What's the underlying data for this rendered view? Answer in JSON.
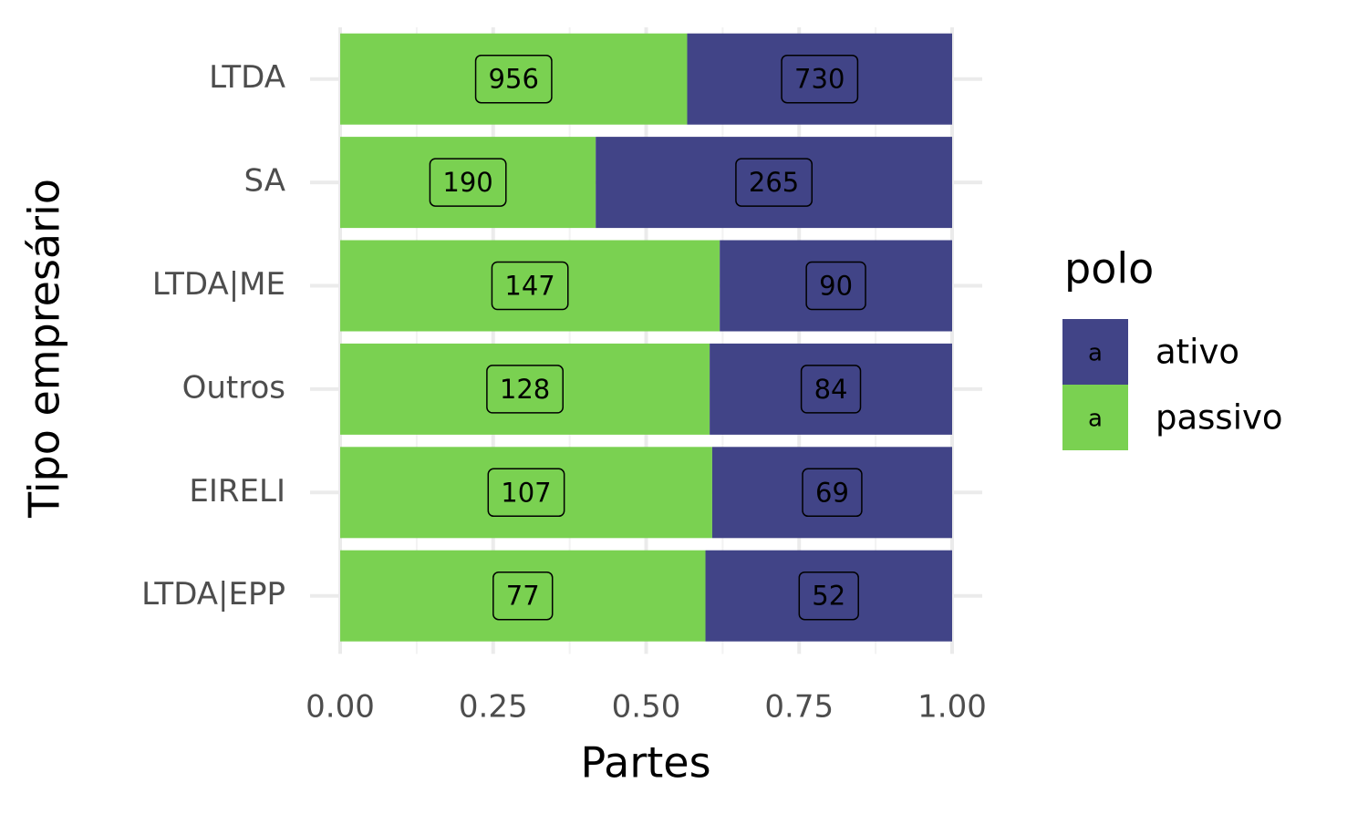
{
  "chart_data": {
    "type": "bar",
    "orientation": "horizontal",
    "position": "fill",
    "x_label": "Partes",
    "y_label": "Tipo empresário",
    "legend_title": "polo",
    "legend_position": "right",
    "categories": [
      "LTDA",
      "SA",
      "LTDA|ME",
      "Outros",
      "EIRELI",
      "LTDA|EPP"
    ],
    "series": [
      {
        "name": "ativo",
        "color": "#414487",
        "values": [
          730,
          265,
          90,
          84,
          69,
          52
        ]
      },
      {
        "name": "passivo",
        "color": "#7AD151",
        "values": [
          956,
          190,
          147,
          128,
          107,
          77
        ]
      }
    ],
    "xlim": [
      0,
      1
    ],
    "xticks": [
      {
        "value": 0,
        "label": "0.00"
      },
      0.25,
      {
        "value": 0.5,
        "label": "0.50"
      },
      0.75,
      {
        "value": 1,
        "label": "1.00"
      }
    ],
    "grid": true,
    "minor_grid": true,
    "data_labels": true
  }
}
